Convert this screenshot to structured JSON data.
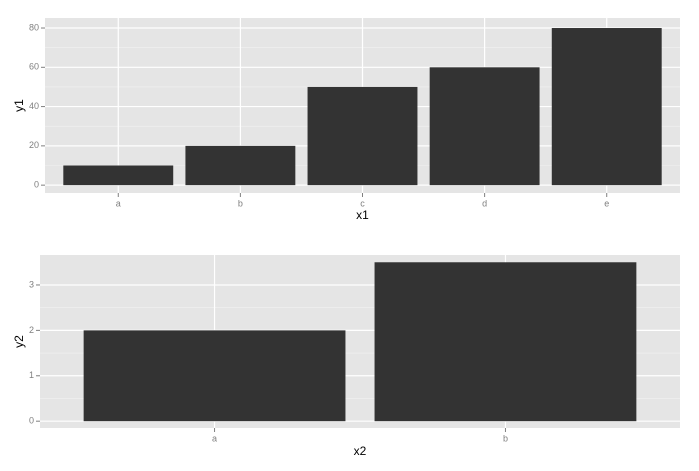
{
  "chart_data": [
    {
      "type": "bar",
      "x_label": "x1",
      "y_label": "y1",
      "categories": [
        "a",
        "b",
        "c",
        "d",
        "e"
      ],
      "values": [
        10,
        20,
        50,
        60,
        80
      ],
      "color": "#333333",
      "ylim": [
        -4,
        85.1
      ],
      "yticks": [
        0,
        20,
        40,
        60,
        80
      ],
      "grid": true
    },
    {
      "type": "bar",
      "x_label": "x2",
      "y_label": "y2",
      "categories": [
        "a",
        "b"
      ],
      "values": [
        2,
        3.5
      ],
      "color": "#333333",
      "ylim": [
        -0.15,
        3.66
      ],
      "yticks": [
        0,
        1,
        2,
        3
      ],
      "grid": true
    }
  ]
}
